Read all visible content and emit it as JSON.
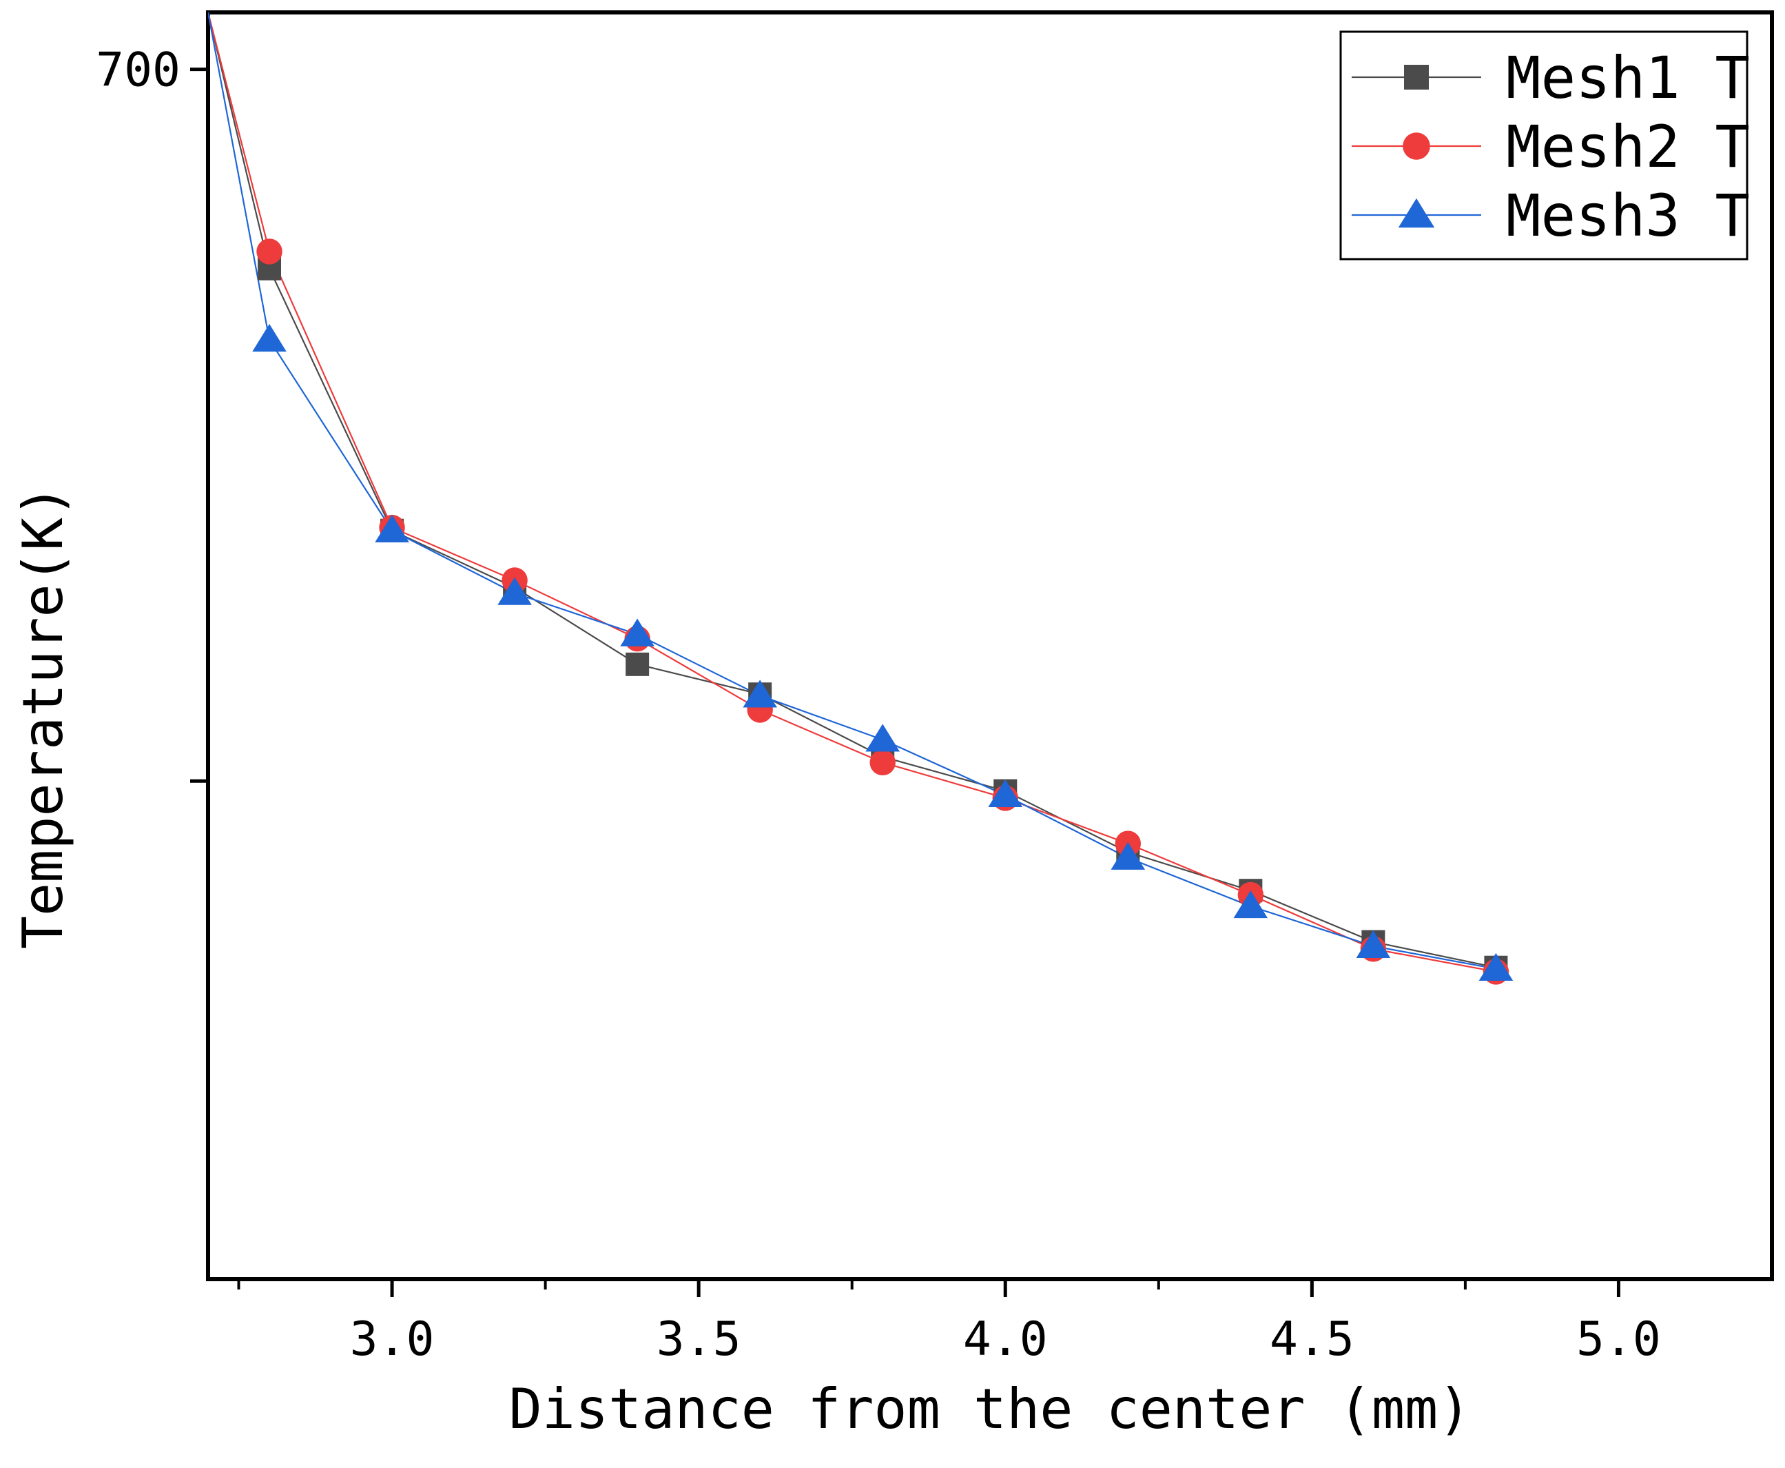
{
  "chart_data": {
    "type": "line",
    "title": "",
    "xlabel": "Distance from the center (mm)",
    "ylabel": "Temperature(K)",
    "xlim": [
      2.7,
      5.25
    ],
    "ylim": [
      615,
      704
    ],
    "xticks": [
      3.0,
      3.5,
      4.0,
      4.5,
      5.0
    ],
    "xtick_labels": [
      "3.0",
      "3.5",
      "4.0",
      "4.5",
      "5.0"
    ],
    "xminor_ticks": [
      2.75,
      3.25,
      3.75,
      4.25,
      4.75
    ],
    "yticks": [
      700,
      650
    ],
    "ytick_labels": [
      "700",
      ""
    ],
    "legend_position": "top-right",
    "series": [
      {
        "name": "Mesh1 T",
        "color": "#4b4b4b",
        "marker": "square",
        "x": [
          2.7,
          2.8,
          3.0,
          3.2,
          3.4,
          3.6,
          3.8,
          4.0,
          4.2,
          4.4,
          4.6,
          4.8
        ],
        "y": [
          704,
          686.0,
          667.6,
          663.6,
          658.2,
          656.1,
          651.7,
          649.3,
          645.0,
          642.3,
          638.7,
          636.9
        ]
      },
      {
        "name": "Mesh2 T",
        "color": "#ee3b3b",
        "marker": "circle",
        "x": [
          2.7,
          2.8,
          3.0,
          3.2,
          3.4,
          3.6,
          3.8,
          4.0,
          4.2,
          4.4,
          4.6,
          4.8
        ],
        "y": [
          704,
          687.2,
          667.8,
          664.1,
          660.0,
          655.0,
          651.3,
          648.8,
          645.6,
          642.0,
          638.2,
          636.6
        ]
      },
      {
        "name": "Mesh3 T",
        "color": "#1f66d6",
        "marker": "triangle",
        "x": [
          2.7,
          2.8,
          3.0,
          3.2,
          3.4,
          3.6,
          3.8,
          4.0,
          4.2,
          4.4,
          4.6,
          4.8
        ],
        "y": [
          704,
          681.0,
          667.6,
          663.2,
          660.3,
          656.0,
          652.9,
          649.0,
          644.6,
          641.2,
          638.4,
          636.8
        ]
      }
    ]
  }
}
